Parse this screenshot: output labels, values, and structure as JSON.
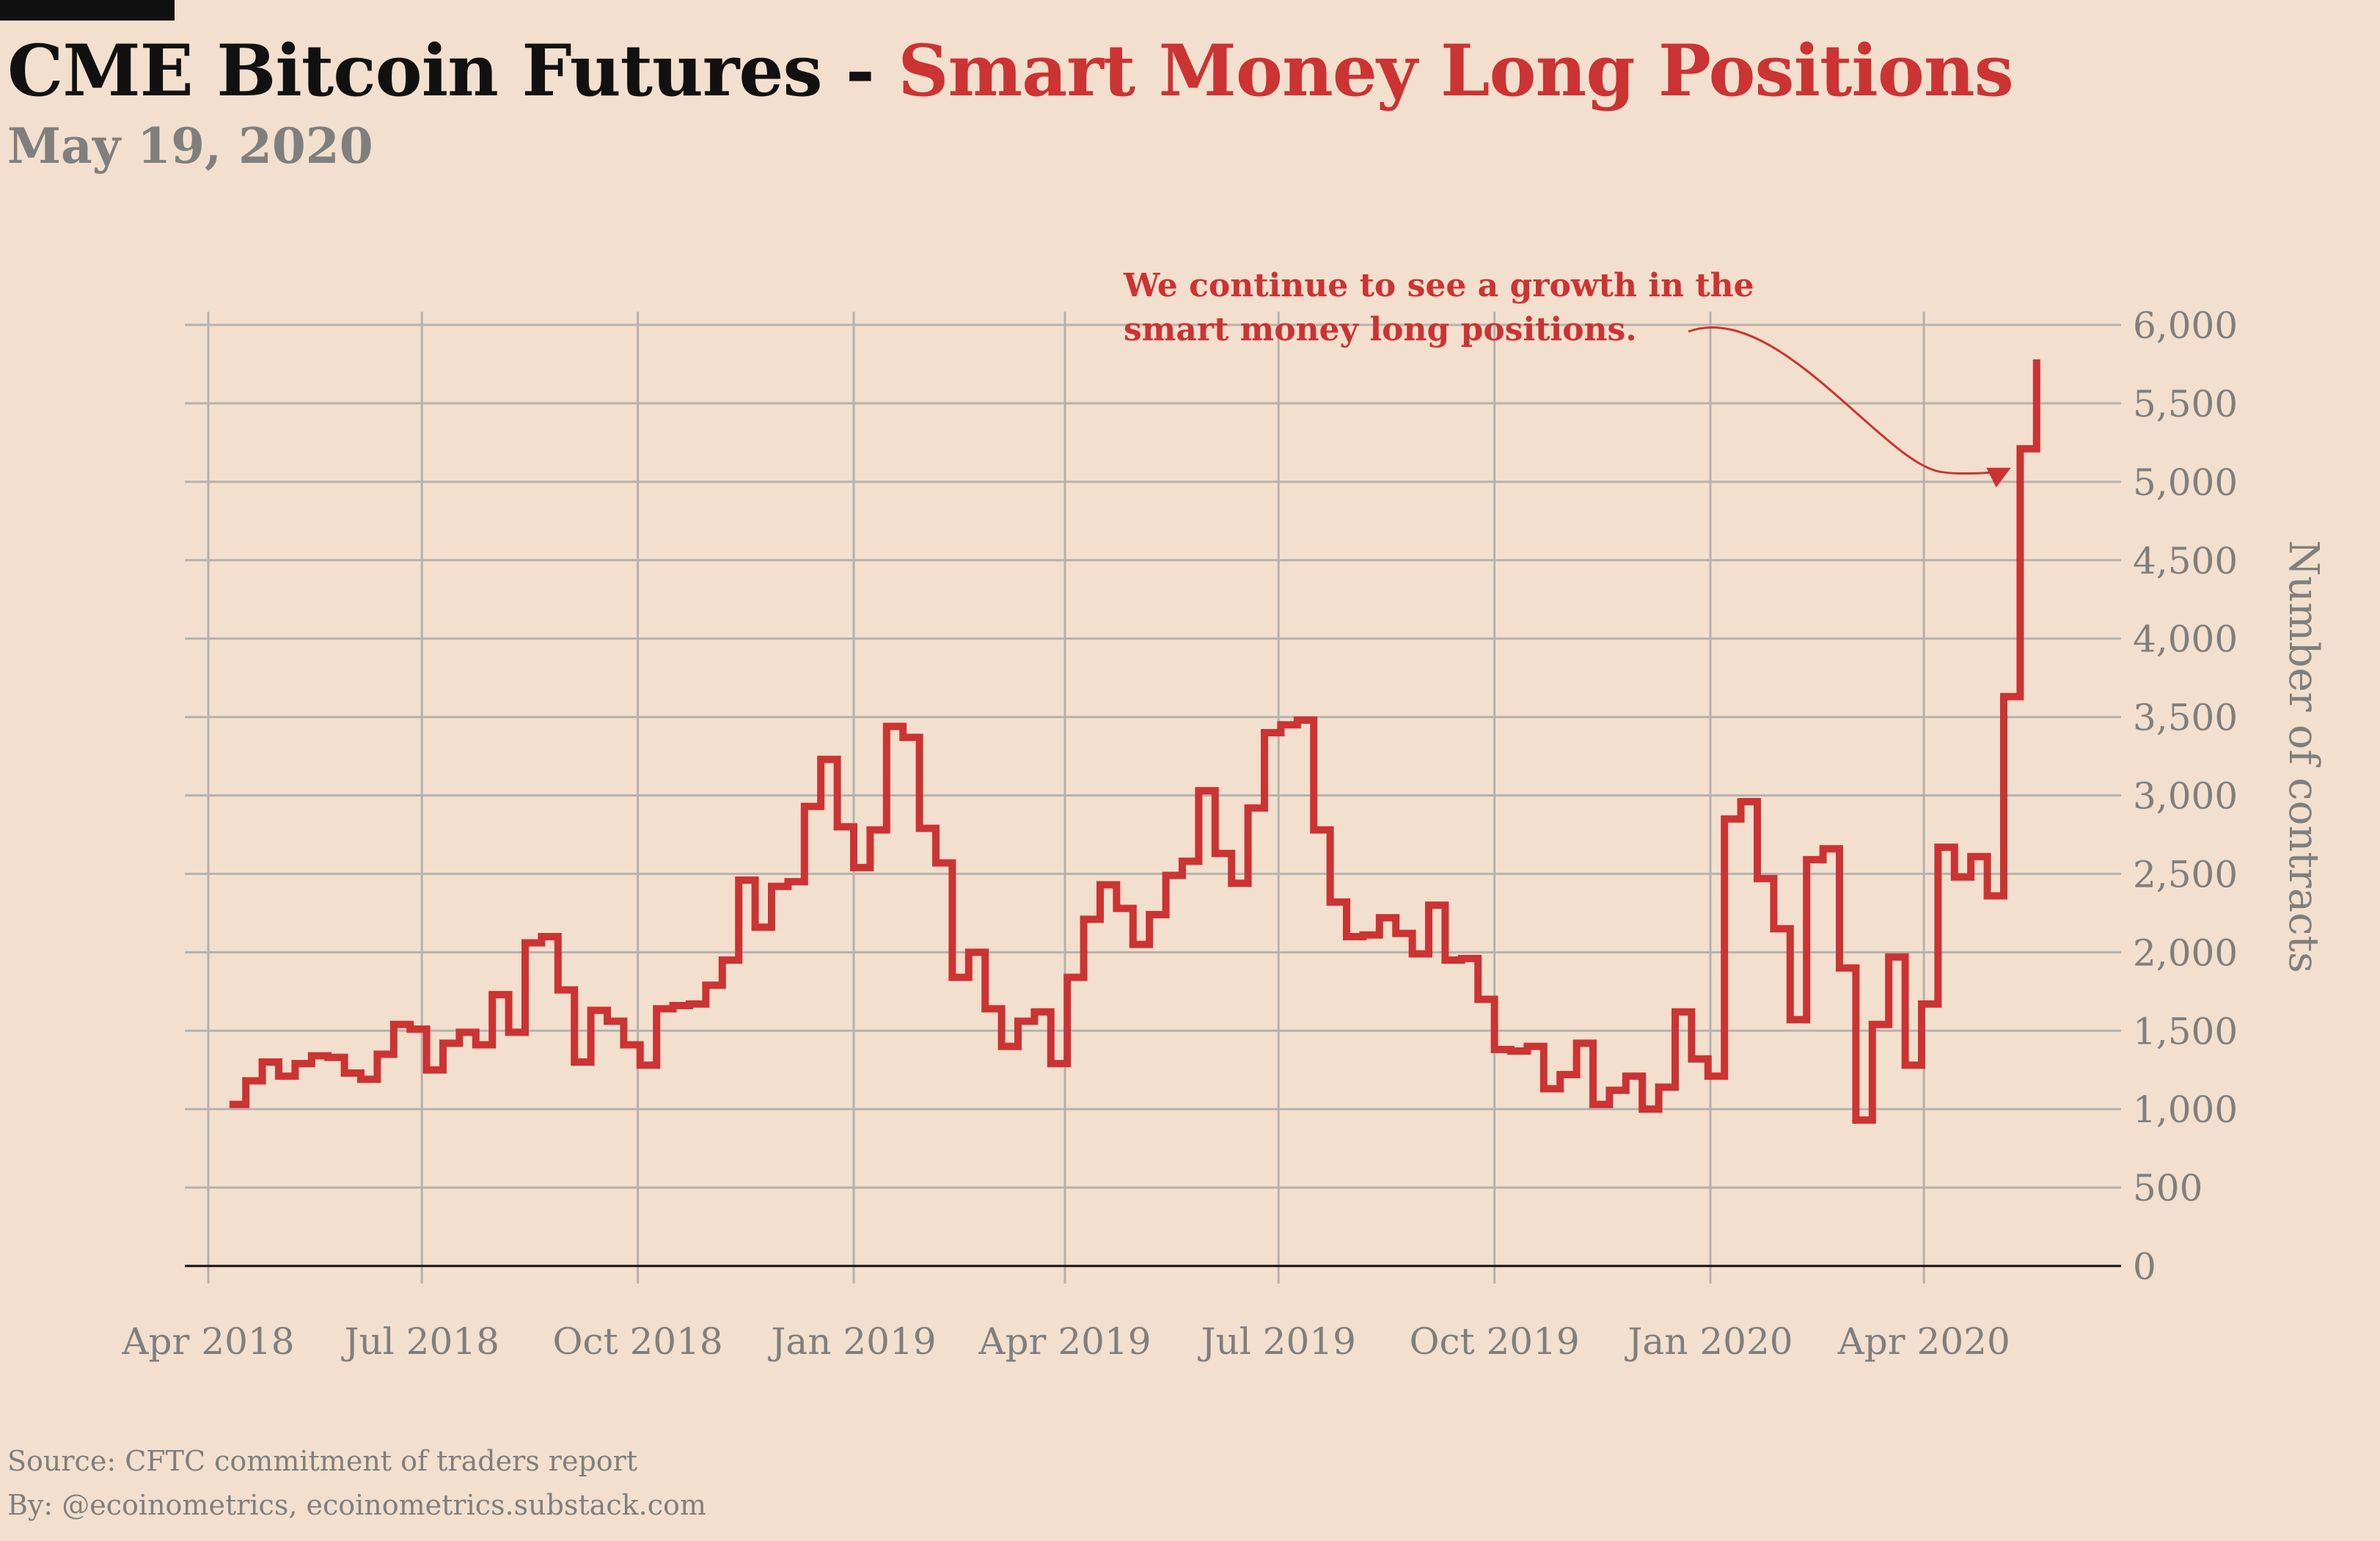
{
  "header": {
    "title_main": "CME Bitcoin Futures - ",
    "title_accent": "Smart Money Long Positions",
    "subtitle": "May 19, 2020"
  },
  "footer": {
    "source": "Source: CFTC commitment of traders report",
    "by": "By: @ecoinometrics, ecoinometrics.substack.com"
  },
  "colors": {
    "background": "#f3dfcd",
    "series": "#cc3333",
    "grid": "#b5b2ad",
    "axis_text": "#7f7f7f",
    "title": "#111111"
  },
  "chart_data": {
    "type": "line",
    "step": true,
    "title": "CME Bitcoin Futures - Smart Money Long Positions",
    "subtitle": "May 19, 2020",
    "xlabel": "",
    "ylabel": "Number of contracts",
    "y_axis_side": "right",
    "grid": true,
    "legend": "none",
    "xlim": [
      "2018-03-22",
      "2020-06-24"
    ],
    "ylim": [
      0,
      6000
    ],
    "x_ticks": [
      {
        "date": "2018-04-01",
        "label": "Apr 2018"
      },
      {
        "date": "2018-07-01",
        "label": "Jul 2018"
      },
      {
        "date": "2018-10-01",
        "label": "Oct 2018"
      },
      {
        "date": "2019-01-01",
        "label": "Jan 2019"
      },
      {
        "date": "2019-04-01",
        "label": "Apr 2019"
      },
      {
        "date": "2019-07-01",
        "label": "Jul 2019"
      },
      {
        "date": "2019-10-01",
        "label": "Oct 2019"
      },
      {
        "date": "2020-01-01",
        "label": "Jan 2020"
      },
      {
        "date": "2020-04-01",
        "label": "Apr 2020"
      }
    ],
    "y_ticks": [
      {
        "value": 0,
        "label": "0"
      },
      {
        "value": 500,
        "label": "500"
      },
      {
        "value": 1000,
        "label": "1,000"
      },
      {
        "value": 1500,
        "label": "1,500"
      },
      {
        "value": 2000,
        "label": "2,000"
      },
      {
        "value": 2500,
        "label": "2,500"
      },
      {
        "value": 3000,
        "label": "3,000"
      },
      {
        "value": 3500,
        "label": "3,500"
      },
      {
        "value": 4000,
        "label": "4,000"
      },
      {
        "value": 4500,
        "label": "4,500"
      },
      {
        "value": 5000,
        "label": "5,000"
      },
      {
        "value": 5500,
        "label": "5,500"
      },
      {
        "value": 6000,
        "label": "6,000"
      }
    ],
    "annotation": {
      "text_line1": "We continue to see a growth in the",
      "text_line2": "smart money long positions.",
      "points_to": {
        "date": "2020-05-12",
        "value": 5100
      }
    },
    "series": [
      {
        "name": "",
        "x": [
          "2018-04-10",
          "2018-04-17",
          "2018-04-24",
          "2018-05-01",
          "2018-05-08",
          "2018-05-15",
          "2018-05-22",
          "2018-05-29",
          "2018-06-05",
          "2018-06-12",
          "2018-06-19",
          "2018-06-26",
          "2018-07-03",
          "2018-07-10",
          "2018-07-17",
          "2018-07-24",
          "2018-07-31",
          "2018-08-07",
          "2018-08-14",
          "2018-08-21",
          "2018-08-28",
          "2018-09-04",
          "2018-09-11",
          "2018-09-18",
          "2018-09-25",
          "2018-10-02",
          "2018-10-09",
          "2018-10-16",
          "2018-10-23",
          "2018-10-30",
          "2018-11-06",
          "2018-11-13",
          "2018-11-20",
          "2018-11-27",
          "2018-12-04",
          "2018-12-11",
          "2018-12-18",
          "2018-12-25",
          "2019-01-01",
          "2019-01-08",
          "2019-01-15",
          "2019-01-22",
          "2019-01-29",
          "2019-02-05",
          "2019-02-12",
          "2019-02-19",
          "2019-02-26",
          "2019-03-05",
          "2019-03-12",
          "2019-03-19",
          "2019-03-26",
          "2019-04-02",
          "2019-04-09",
          "2019-04-16",
          "2019-04-23",
          "2019-04-30",
          "2019-05-07",
          "2019-05-14",
          "2019-05-21",
          "2019-05-28",
          "2019-06-04",
          "2019-06-11",
          "2019-06-18",
          "2019-06-25",
          "2019-07-02",
          "2019-07-09",
          "2019-07-16",
          "2019-07-23",
          "2019-07-30",
          "2019-08-06",
          "2019-08-13",
          "2019-08-20",
          "2019-08-27",
          "2019-09-03",
          "2019-09-10",
          "2019-09-17",
          "2019-09-24",
          "2019-10-01",
          "2019-10-08",
          "2019-10-15",
          "2019-10-22",
          "2019-10-29",
          "2019-11-05",
          "2019-11-12",
          "2019-11-19",
          "2019-11-26",
          "2019-12-03",
          "2019-12-10",
          "2019-12-17",
          "2019-12-24",
          "2019-12-31",
          "2020-01-07",
          "2020-01-14",
          "2020-01-21",
          "2020-01-28",
          "2020-02-04",
          "2020-02-11",
          "2020-02-18",
          "2020-02-25",
          "2020-03-03",
          "2020-03-10",
          "2020-03-17",
          "2020-03-24",
          "2020-03-31",
          "2020-04-07",
          "2020-04-14",
          "2020-04-21",
          "2020-04-28",
          "2020-05-05",
          "2020-05-12",
          "2020-05-19"
        ],
        "values": [
          1030,
          1180,
          1300,
          1210,
          1290,
          1340,
          1330,
          1230,
          1190,
          1350,
          1540,
          1510,
          1250,
          1420,
          1490,
          1410,
          1730,
          1490,
          2060,
          2100,
          1760,
          1300,
          1630,
          1560,
          1410,
          1280,
          1640,
          1660,
          1670,
          1790,
          1950,
          2460,
          2160,
          2420,
          2450,
          2930,
          3230,
          2800,
          2540,
          2780,
          3440,
          3370,
          2790,
          2570,
          1840,
          2000,
          1640,
          1400,
          1560,
          1620,
          1290,
          1840,
          2210,
          2430,
          2280,
          2050,
          2240,
          2490,
          2580,
          3030,
          2630,
          2440,
          2920,
          3400,
          3450,
          3480,
          2780,
          2320,
          2100,
          2110,
          2220,
          2120,
          1990,
          2300,
          1950,
          1960,
          1700,
          1380,
          1370,
          1400,
          1130,
          1220,
          1420,
          1030,
          1120,
          1210,
          1000,
          1140,
          1620,
          1320,
          1210,
          2850,
          2960,
          2470,
          2150,
          1570,
          2590,
          2660,
          1900,
          930,
          1540,
          1970,
          1280,
          1670,
          2670,
          2480,
          2610,
          2360,
          3630,
          5210,
          5780
        ]
      }
    ]
  }
}
